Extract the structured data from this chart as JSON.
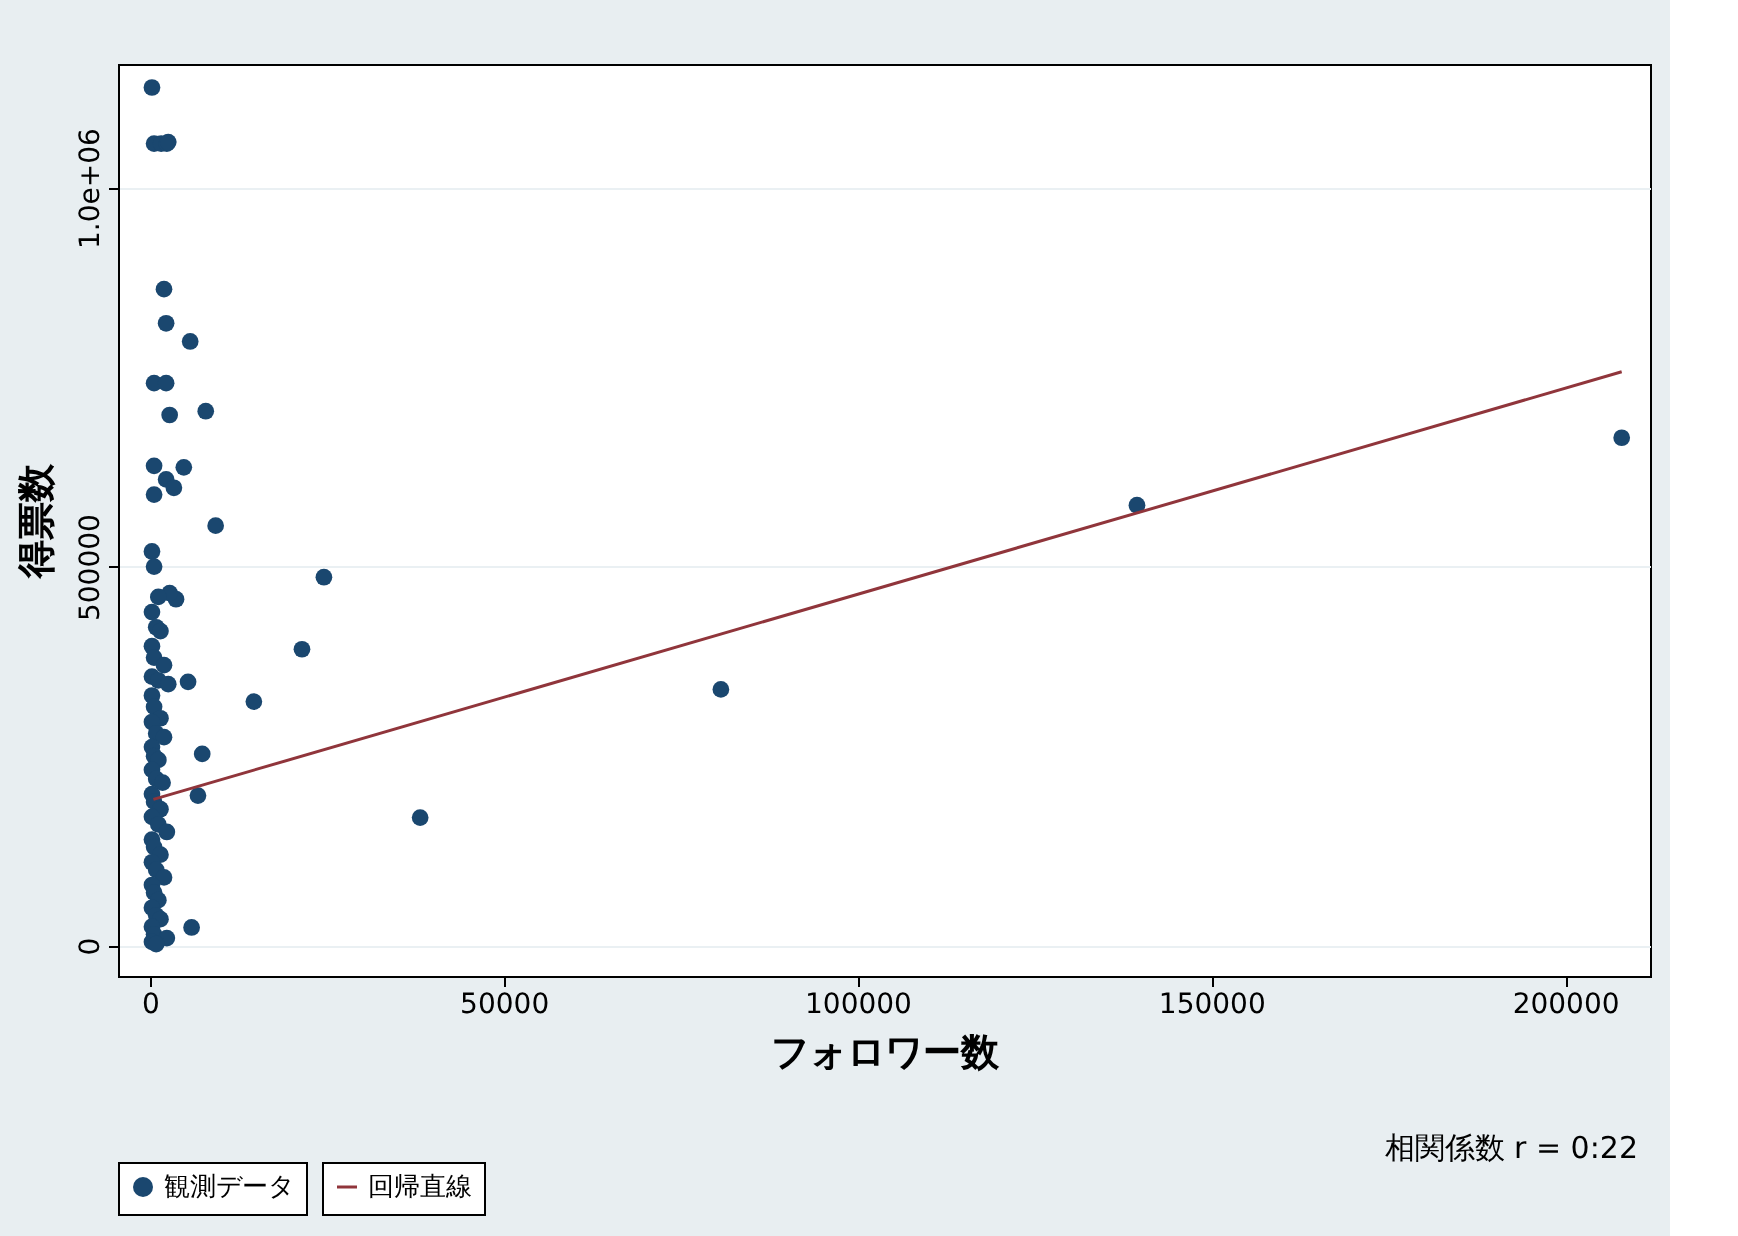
{
  "chart_data": {
    "type": "scatter",
    "xlabel": "フォロワー数",
    "ylabel": "得票数",
    "xlim": [
      -4500,
      212000
    ],
    "ylim": [
      -40000,
      1163000
    ],
    "xticks": [
      0,
      50000,
      100000,
      150000,
      200000
    ],
    "yticks": [
      0,
      500000,
      {
        "value": 1000000,
        "label": "1.0e+06"
      }
    ],
    "grid": "y",
    "legend": "bottom",
    "marker": "circle",
    "annotations": [
      "相関係数 r = 0:22"
    ],
    "series": [
      {
        "name": "観測データ",
        "color": "#1a476f",
        "x": [
          300,
          600,
          1600,
          2400,
          2600,
          2000,
          2300,
          5700,
          600,
          2300,
          7900,
          2800,
          600,
          2300,
          4800,
          600,
          3400,
          9300,
          24600,
          21500,
          14700,
          7400,
          6800,
          38200,
          80700,
          139500,
          208000,
          5900,
          3700,
          2800,
          5400,
          300,
          600,
          1200,
          300,
          900,
          1500,
          300,
          600,
          2000,
          300,
          1200,
          2600,
          300,
          600,
          1500,
          300,
          900,
          2000,
          300,
          600,
          1200,
          300,
          900,
          1800,
          300,
          600,
          1500,
          300,
          1200,
          2400,
          300,
          600,
          1500,
          300,
          900,
          2000,
          300,
          600,
          1200,
          300,
          900,
          1500,
          300,
          600,
          2400,
          300,
          900
        ],
        "values": [
          1132000,
          1058000,
          1058000,
          1058000,
          1060000,
          866000,
          821000,
          797000,
          742000,
          742000,
          705000,
          700000,
          633000,
          615000,
          631000,
          595000,
          604000,
          554000,
          486000,
          391000,
          322000,
          253000,
          198000,
          169000,
          338000,
          581000,
          670000,
          24000,
          457000,
          465000,
          348000,
          520000,
          500000,
          460000,
          440000,
          420000,
          415000,
          395000,
          380000,
          370000,
          355000,
          350000,
          345000,
          330000,
          315000,
          300000,
          295000,
          280000,
          275000,
          262000,
          250000,
          245000,
          232000,
          220000,
          215000,
          200000,
          190000,
          180000,
          170000,
          160000,
          150000,
          140000,
          130000,
          120000,
          110000,
          100000,
          90000,
          80000,
          70000,
          60000,
          50000,
          40000,
          35000,
          25000,
          15000,
          10000,
          5000,
          2000
        ]
      },
      {
        "name": "回帰直線",
        "color": "#90353b",
        "type": "line",
        "marker": "none",
        "line_style": "solid",
        "x": [
          500,
          208000
        ],
        "values": [
          193000,
          757000
        ]
      }
    ]
  }
}
